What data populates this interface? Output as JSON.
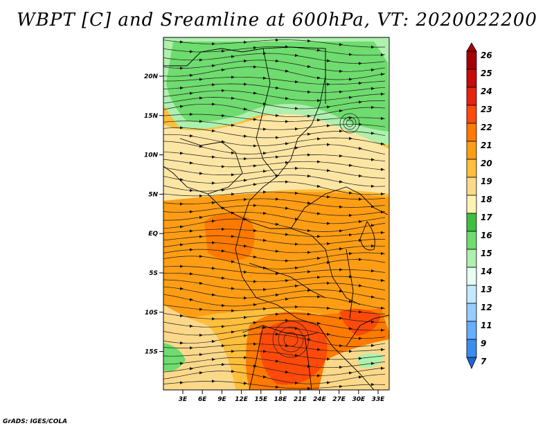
{
  "title": "WBPT [C] and Sreamline at 600hPa, VT: 2020022200",
  "credit": "GrADS: IGES/COLA",
  "lat_labels": [
    "20N",
    "15N",
    "10N",
    "5N",
    "EQ",
    "5S",
    "10S",
    "15S"
  ],
  "lon_labels": [
    "3E",
    "6E",
    "9E",
    "12E",
    "15E",
    "18E",
    "21E",
    "24E",
    "27E",
    "30E",
    "33E"
  ],
  "colorbar": {
    "labels": [
      "26",
      "25",
      "24",
      "23",
      "22",
      "21",
      "20",
      "19",
      "18",
      "17",
      "16",
      "15",
      "14",
      "13",
      "12",
      "11",
      "9",
      "7"
    ],
    "colors": [
      "#a50000",
      "#c80a0a",
      "#e6230f",
      "#ff4a0a",
      "#ff7a00",
      "#ff9d14",
      "#ffbe3c",
      "#fcd98a",
      "#fff2b0",
      "#3fbe3f",
      "#6fdc6f",
      "#aef0ae",
      "#e6fff0",
      "#c3e8ff",
      "#96cdff",
      "#64afff",
      "#3c8cf0",
      "#1e64d2"
    ]
  },
  "map": {
    "region_colors": {
      "green_north": "#6edc6e",
      "light_green": "#aef0ae",
      "pale_yellow": "#fcd98a",
      "yellow_band": "#fde6a4",
      "orange": "#ff9d14",
      "dark_orange": "#ff7a00",
      "red_orange": "#ff4a0a"
    }
  }
}
